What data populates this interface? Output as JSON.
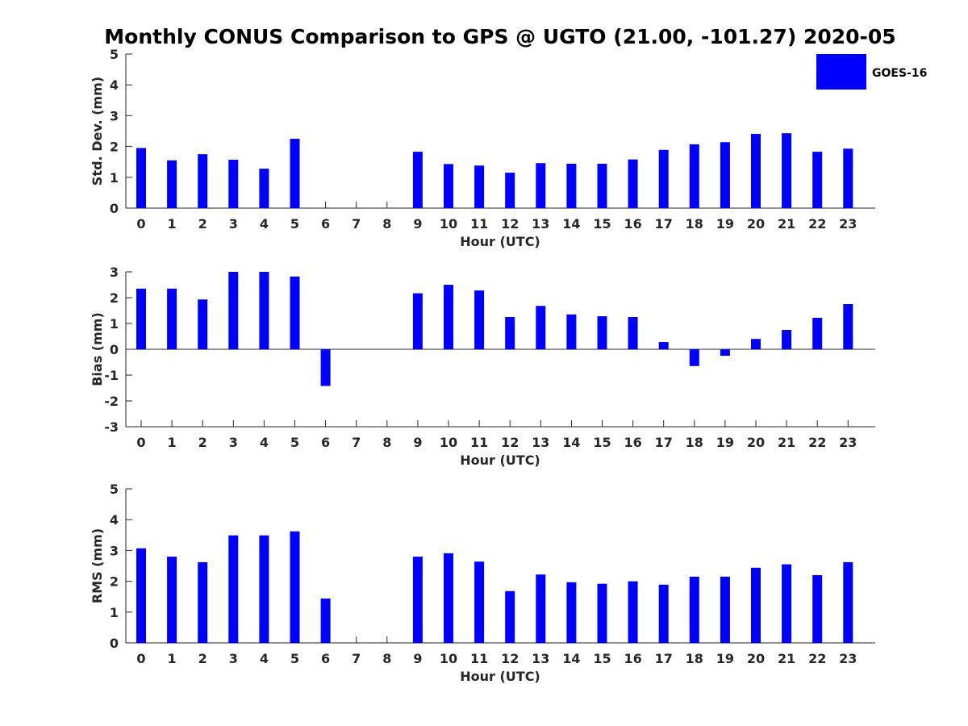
{
  "figure": {
    "title": "Monthly CONUS Comparison to GPS @ UGTO (21.00, -101.27) 2020-05",
    "legend_label": "GOES-16",
    "bar_color": "#0000ff",
    "axis_color": "#262626"
  },
  "chart_data": [
    {
      "type": "bar",
      "name": "std-dev",
      "categories": [
        "0",
        "1",
        "2",
        "3",
        "4",
        "5",
        "6",
        "7",
        "8",
        "9",
        "10",
        "11",
        "12",
        "13",
        "14",
        "15",
        "16",
        "17",
        "18",
        "19",
        "20",
        "21",
        "22",
        "23"
      ],
      "series": [
        {
          "name": "GOES-16",
          "values": [
            1.95,
            1.55,
            1.75,
            1.57,
            1.28,
            2.25,
            null,
            null,
            null,
            1.83,
            1.43,
            1.38,
            1.15,
            1.46,
            1.44,
            1.44,
            1.58,
            1.89,
            2.07,
            2.14,
            2.41,
            2.43,
            1.83,
            1.93
          ]
        }
      ],
      "xlabel": "Hour (UTC)",
      "ylabel": "Std. Dev. (mm)",
      "ylim": [
        0,
        5
      ],
      "yticks": [
        0,
        1,
        2,
        3,
        4,
        5
      ],
      "ytick_labels": [
        "0",
        "1",
        "2",
        "3",
        "4",
        "5"
      ],
      "legend": "top-right"
    },
    {
      "type": "bar",
      "name": "bias",
      "categories": [
        "0",
        "1",
        "2",
        "3",
        "4",
        "5",
        "6",
        "7",
        "8",
        "9",
        "10",
        "11",
        "12",
        "13",
        "14",
        "15",
        "16",
        "17",
        "18",
        "19",
        "20",
        "21",
        "22",
        "23"
      ],
      "series": [
        {
          "name": "GOES-16",
          "values": [
            2.35,
            2.35,
            1.93,
            3.0,
            3.0,
            2.82,
            -1.42,
            null,
            null,
            2.17,
            2.5,
            2.28,
            1.25,
            1.68,
            1.35,
            1.28,
            1.25,
            0.28,
            -0.65,
            -0.25,
            0.4,
            0.75,
            1.22,
            1.75
          ]
        }
      ],
      "xlabel": "Hour (UTC)",
      "ylabel": "Bias (mm)",
      "ylim": [
        -3,
        3
      ],
      "yticks": [
        -3,
        -2,
        -1,
        0,
        1,
        2,
        3
      ],
      "ytick_labels": [
        "-3",
        "-2",
        "-1",
        "0",
        "1",
        "2",
        "3"
      ]
    },
    {
      "type": "bar",
      "name": "rms",
      "categories": [
        "0",
        "1",
        "2",
        "3",
        "4",
        "5",
        "6",
        "7",
        "8",
        "9",
        "10",
        "11",
        "12",
        "13",
        "14",
        "15",
        "16",
        "17",
        "18",
        "19",
        "20",
        "21",
        "22",
        "23"
      ],
      "series": [
        {
          "name": "GOES-16",
          "values": [
            3.07,
            2.8,
            2.62,
            3.49,
            3.49,
            3.62,
            1.44,
            null,
            null,
            2.8,
            2.91,
            2.64,
            1.68,
            2.22,
            1.97,
            1.92,
            2.0,
            1.89,
            2.15,
            2.15,
            2.44,
            2.55,
            2.2,
            2.62
          ]
        }
      ],
      "xlabel": "Hour (UTC)",
      "ylabel": "RMS (mm)",
      "ylim": [
        0,
        5
      ],
      "yticks": [
        0,
        1,
        2,
        3,
        4,
        5
      ],
      "ytick_labels": [
        "0",
        "1",
        "2",
        "3",
        "4",
        "5"
      ]
    }
  ]
}
